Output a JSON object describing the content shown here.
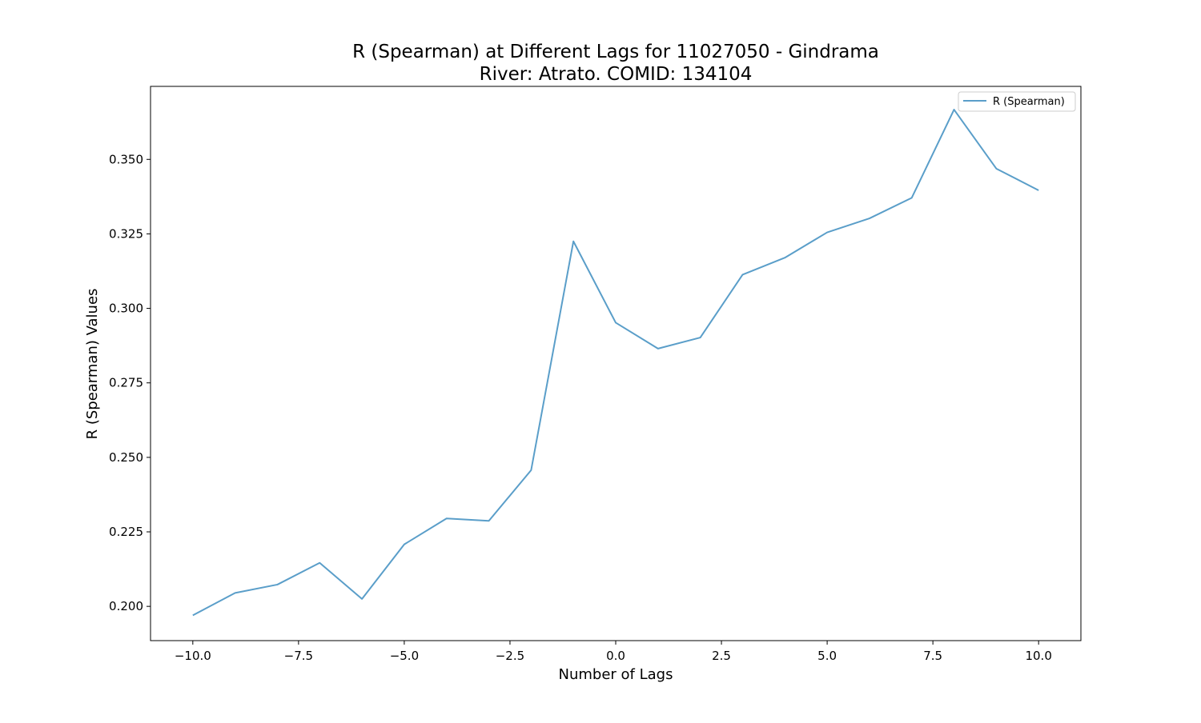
{
  "chart_data": {
    "type": "line",
    "title_line1": "R (Spearman) at Different Lags for 11027050 - Gindrama",
    "title_line2": "River: Atrato. COMID: 134104",
    "xlabel": "Number of Lags",
    "ylabel": "R (Spearman) Values",
    "xlim": [
      -11,
      11
    ],
    "ylim": [
      0.1885,
      0.3745
    ],
    "xticks": [
      -10.0,
      -7.5,
      -5.0,
      -2.5,
      0.0,
      2.5,
      5.0,
      7.5,
      10.0
    ],
    "xtick_labels": [
      "−10.0",
      "−7.5",
      "−5.0",
      "−2.5",
      "0.0",
      "2.5",
      "5.0",
      "7.5",
      "10.0"
    ],
    "yticks": [
      0.2,
      0.225,
      0.25,
      0.275,
      0.3,
      0.325,
      0.35
    ],
    "ytick_labels": [
      "0.200",
      "0.225",
      "0.250",
      "0.275",
      "0.300",
      "0.325",
      "0.350"
    ],
    "grid": false,
    "legend_position": "top-right",
    "series": [
      {
        "name": "R (Spearman)",
        "color": "#5a9ec9",
        "x": [
          -10,
          -9,
          -8,
          -7,
          -6,
          -5,
          -4,
          -3,
          -2,
          -1,
          0,
          1,
          2,
          3,
          4,
          5,
          6,
          7,
          8,
          9,
          10
        ],
        "y": [
          0.197,
          0.2045,
          0.2073,
          0.2146,
          0.2025,
          0.2208,
          0.2295,
          0.2287,
          0.2457,
          0.3225,
          0.2952,
          0.2865,
          0.2902,
          0.3113,
          0.317,
          0.3255,
          0.3302,
          0.3371,
          0.3667,
          0.3469,
          0.3396
        ]
      }
    ]
  }
}
